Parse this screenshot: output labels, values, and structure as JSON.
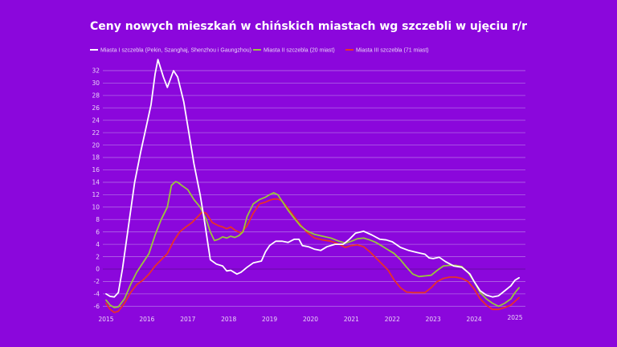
{
  "chart_data": {
    "type": "line",
    "title": "Ceny nowych mieszkań w chińskich miastach wg szczebli w ujęciu r/r",
    "xlabel": "",
    "ylabel": "",
    "ylim": [
      -7,
      33
    ],
    "xlim": [
      2015,
      2025.2
    ],
    "grid": true,
    "legend_position": "top-left",
    "y_ticks": [
      -6,
      -4,
      -2,
      0,
      2,
      4,
      6,
      8,
      10,
      12,
      14,
      16,
      18,
      20,
      22,
      24,
      26,
      28,
      30,
      32
    ],
    "x_ticks": [
      "2015",
      "2016",
      "2017",
      "2018",
      "2019",
      "2020",
      "2021",
      "2022",
      "2023",
      "2024",
      "2025"
    ],
    "series": [
      {
        "name": "Miasta I szczebla (Pekin, Szanghaj, Shenzhou i Gaungzhou)",
        "color": "#ffffff",
        "x": [
          2015.0,
          2015.1,
          2015.2,
          2015.3,
          2015.4,
          2015.55,
          2015.7,
          2015.85,
          2015.95,
          2016.1,
          2016.2,
          2016.27,
          2016.4,
          2016.5,
          2016.65,
          2016.75,
          2016.9,
          2017.0,
          2017.15,
          2017.3,
          2017.4,
          2017.55,
          2017.7,
          2017.85,
          2017.95,
          2018.05,
          2018.2,
          2018.3,
          2018.45,
          2018.6,
          2018.8,
          2018.9,
          2019.0,
          2019.15,
          2019.3,
          2019.45,
          2019.6,
          2019.72,
          2019.8,
          2019.95,
          2020.1,
          2020.25,
          2020.4,
          2020.6,
          2020.8,
          2020.95,
          2021.1,
          2021.3,
          2021.5,
          2021.7,
          2021.85,
          2022.0,
          2022.2,
          2022.4,
          2022.6,
          2022.8,
          2022.9,
          2023.0,
          2023.15,
          2023.3,
          2023.5,
          2023.7,
          2023.9,
          2024.0,
          2024.15,
          2024.3,
          2024.45,
          2024.6,
          2024.75,
          2024.9,
          2025.0,
          2025.1
        ],
        "values": [
          -4,
          -4.4,
          -4.5,
          -3.8,
          0,
          7,
          14,
          19,
          22,
          26.5,
          31.5,
          33.8,
          31,
          29.3,
          32,
          31,
          27,
          23,
          17,
          12,
          8,
          1.5,
          0.8,
          0.5,
          -0.3,
          -0.2,
          -0.8,
          -0.5,
          0.3,
          1,
          1.3,
          2.8,
          3.8,
          4.5,
          4.5,
          4.3,
          4.8,
          4.8,
          3.8,
          3.6,
          3.2,
          3,
          3.6,
          4,
          4,
          4.8,
          5.8,
          6.1,
          5.5,
          4.8,
          4.7,
          4.4,
          3.5,
          3,
          2.7,
          2.4,
          1.8,
          1.7,
          1.9,
          1.2,
          0.5,
          0.3,
          -0.8,
          -2,
          -3.5,
          -4.2,
          -4.5,
          -4.3,
          -3.5,
          -2.7,
          -1.8,
          -1.4
        ]
      },
      {
        "name": "Miasta II szczebla (20 miast)",
        "color": "#9bc53d",
        "x": [
          2015.0,
          2015.1,
          2015.2,
          2015.3,
          2015.45,
          2015.6,
          2015.75,
          2015.9,
          2016.05,
          2016.2,
          2016.35,
          2016.5,
          2016.6,
          2016.7,
          2016.75,
          2016.85,
          2017.0,
          2017.15,
          2017.3,
          2017.45,
          2017.55,
          2017.65,
          2017.75,
          2017.85,
          2017.95,
          2018.05,
          2018.15,
          2018.25,
          2018.35,
          2018.45,
          2018.6,
          2018.75,
          2018.9,
          2019.0,
          2019.1,
          2019.2,
          2019.3,
          2019.45,
          2019.6,
          2019.75,
          2019.9,
          2020.1,
          2020.3,
          2020.5,
          2020.7,
          2020.85,
          2021.0,
          2021.15,
          2021.3,
          2021.45,
          2021.6,
          2021.75,
          2021.9,
          2022.05,
          2022.2,
          2022.35,
          2022.5,
          2022.65,
          2022.8,
          2022.95,
          2023.1,
          2023.25,
          2023.4,
          2023.55,
          2023.7,
          2023.85,
          2024.0,
          2024.15,
          2024.3,
          2024.45,
          2024.6,
          2024.75,
          2024.9,
          2025.0,
          2025.1
        ],
        "values": [
          -5,
          -5.8,
          -6.2,
          -6.1,
          -4.8,
          -2.5,
          -0.5,
          1,
          2.5,
          5.5,
          8,
          10,
          13.5,
          14.1,
          14,
          13.5,
          12.8,
          11.2,
          10,
          8,
          6,
          4.6,
          4.8,
          5.2,
          5,
          5.3,
          5.1,
          5.4,
          6,
          8.5,
          10.5,
          11.2,
          11.6,
          12,
          12.3,
          12,
          11,
          9.5,
          8.2,
          7,
          6.2,
          5.6,
          5.3,
          5,
          4.5,
          4.2,
          4.5,
          4.9,
          5,
          4.7,
          4.3,
          3.7,
          3.1,
          2.5,
          1.5,
          0.3,
          -0.8,
          -1.2,
          -1.1,
          -1,
          -0.2,
          0.5,
          0.6,
          0.6,
          0.4,
          -0.5,
          -2,
          -3.8,
          -4.8,
          -5.5,
          -6,
          -5.5,
          -4.8,
          -3.8,
          -3
        ]
      },
      {
        "name": "Miasta III szczebla (71 miast)",
        "color": "#e8302a",
        "x": [
          2015.0,
          2015.1,
          2015.2,
          2015.3,
          2015.45,
          2015.6,
          2015.75,
          2015.9,
          2016.05,
          2016.2,
          2016.35,
          2016.5,
          2016.65,
          2016.8,
          2016.95,
          2017.1,
          2017.25,
          2017.35,
          2017.45,
          2017.6,
          2017.75,
          2017.85,
          2017.95,
          2018.05,
          2018.15,
          2018.3,
          2018.45,
          2018.6,
          2018.75,
          2018.9,
          2019.0,
          2019.1,
          2019.2,
          2019.3,
          2019.45,
          2019.6,
          2019.75,
          2019.9,
          2020.1,
          2020.3,
          2020.5,
          2020.7,
          2020.85,
          2021.0,
          2021.15,
          2021.3,
          2021.45,
          2021.6,
          2021.75,
          2021.9,
          2022.05,
          2022.2,
          2022.35,
          2022.5,
          2022.65,
          2022.8,
          2022.95,
          2023.1,
          2023.25,
          2023.4,
          2023.55,
          2023.7,
          2023.85,
          2024.0,
          2024.15,
          2024.3,
          2024.45,
          2024.6,
          2024.75,
          2024.9,
          2025.0,
          2025.1
        ],
        "values": [
          -5.5,
          -6.5,
          -7,
          -6.8,
          -5.5,
          -3.8,
          -2.5,
          -1.8,
          -0.8,
          0.5,
          1.5,
          2.5,
          4.5,
          6,
          6.8,
          7.5,
          8.5,
          9.2,
          9,
          7.5,
          7,
          6.8,
          6.5,
          6.8,
          6.3,
          5.8,
          7,
          9,
          10.5,
          10.8,
          11.1,
          11.3,
          11.3,
          11,
          9.8,
          8.5,
          7.2,
          6,
          5,
          4.7,
          4.5,
          4,
          3.5,
          3.8,
          3.9,
          3.6,
          2.8,
          1.8,
          0.8,
          -0.2,
          -1.8,
          -3,
          -3.7,
          -3.8,
          -3.8,
          -3.8,
          -3,
          -2,
          -1.5,
          -1.3,
          -1.3,
          -1.5,
          -2,
          -3.2,
          -4.8,
          -5.8,
          -6.5,
          -6.5,
          -6.2,
          -5.8,
          -5.2,
          -4.6
        ]
      }
    ]
  }
}
